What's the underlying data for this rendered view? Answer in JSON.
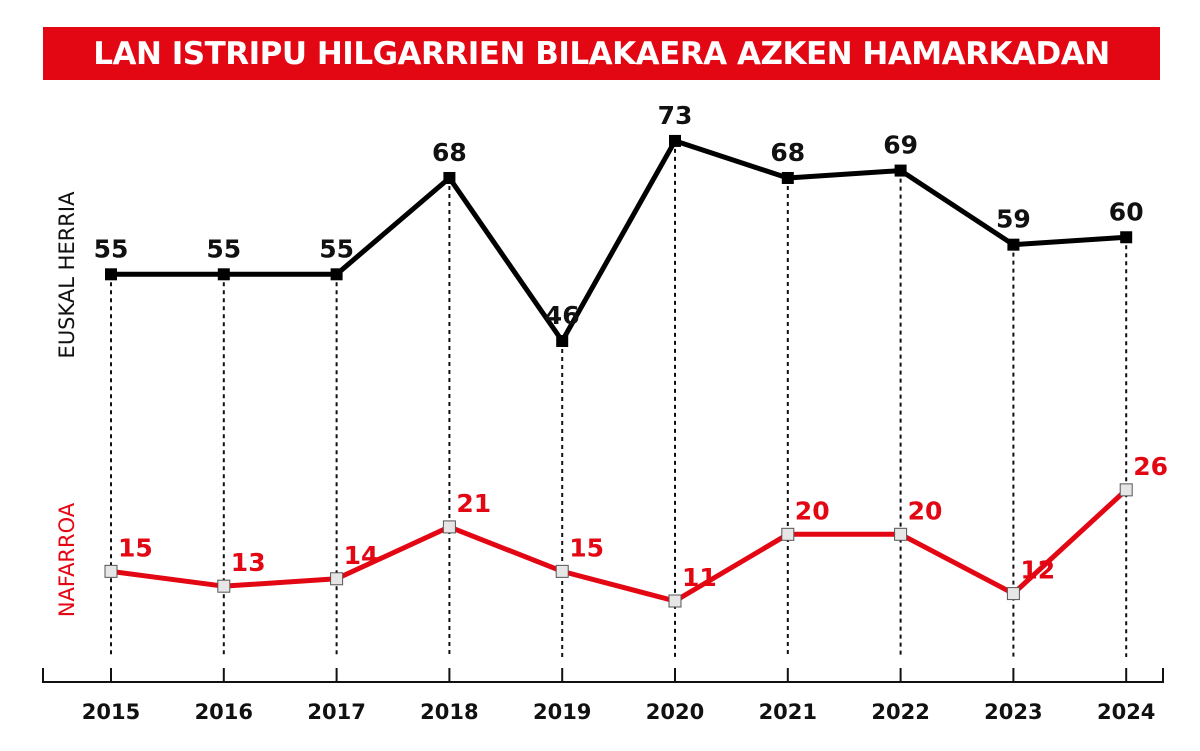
{
  "chart_data": {
    "type": "line",
    "title": "LAN ISTRIPU HILGARRIEN BILAKAERA AZKEN HAMARKADAN",
    "categories": [
      "2015",
      "2016",
      "2017",
      "2018",
      "2019",
      "2020",
      "2021",
      "2022",
      "2023",
      "2024"
    ],
    "series": [
      {
        "name": "EUSKAL HERRIA",
        "color": "#000000",
        "values": [
          55,
          55,
          55,
          68,
          46,
          73,
          68,
          69,
          59,
          60
        ]
      },
      {
        "name": "NAFARROA",
        "color": "#e30613",
        "values": [
          15,
          13,
          14,
          21,
          15,
          11,
          20,
          20,
          12,
          26
        ]
      }
    ],
    "grid": false,
    "legend": "left, vertical labels",
    "title_bg": "#e30613"
  }
}
